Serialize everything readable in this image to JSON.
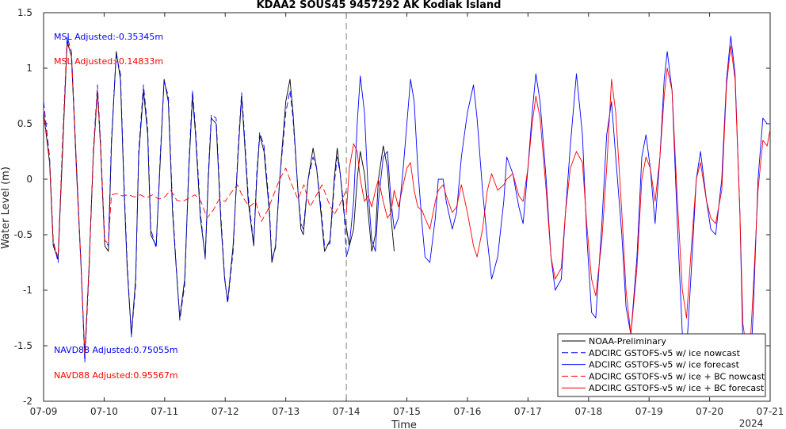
{
  "chart_data": {
    "type": "line",
    "title": "KDAA2 SOUS45 9457292 AK Kodiak Island",
    "xlabel": "Time",
    "ylabel": "Water Level (m)",
    "year_label": "2024",
    "xlim": [
      0,
      12
    ],
    "ylim": [
      -2,
      1.5
    ],
    "x_tick_values": [
      0,
      1,
      2,
      3,
      4,
      5,
      6,
      7,
      8,
      9,
      10,
      11,
      12
    ],
    "x_tick_labels": [
      "07-09",
      "07-10",
      "07-11",
      "07-12",
      "07-13",
      "07-14",
      "07-15",
      "07-16",
      "07-17",
      "07-18",
      "07-19",
      "07-20",
      "07-21"
    ],
    "y_tick_values": [
      -2,
      -1.5,
      -1,
      -0.5,
      0,
      0.5,
      1,
      1.5
    ],
    "y_tick_labels": [
      "-2",
      "-1.5",
      "-1",
      "-0.5",
      "0",
      "0.5",
      "1",
      "1.5"
    ],
    "forecast_start": 5,
    "annotations": [
      {
        "text": "MSL Adjusted:-0.35345m",
        "color": "#0000ff"
      },
      {
        "text": "MSL Adjusted:-0.14833m",
        "color": "#ff0000"
      },
      {
        "text": "NAVD88 Adjusted:0.75055m",
        "color": "#0000ff"
      },
      {
        "text": "NAVD88 Adjusted:0.95567m",
        "color": "#ff0000"
      }
    ],
    "legend_position": "bottom-right",
    "series": [
      {
        "name": "NOAA-Preliminary",
        "color": "#000000",
        "dash": "solid",
        "x": [
          0.0,
          0.1,
          0.16,
          0.24,
          0.31,
          0.39,
          0.46,
          0.55,
          0.62,
          0.68,
          0.75,
          0.82,
          0.89,
          0.94,
          1.01,
          1.07,
          1.12,
          1.2,
          1.27,
          1.33,
          1.38,
          1.45,
          1.52,
          1.57,
          1.65,
          1.72,
          1.77,
          1.86,
          1.93,
          1.99,
          2.06,
          2.13,
          2.19,
          2.25,
          2.33,
          2.4,
          2.46,
          2.51,
          2.59,
          2.67,
          2.72,
          2.77,
          2.85,
          2.93,
          2.99,
          3.04,
          3.13,
          3.21,
          3.27,
          3.3,
          3.38,
          3.47,
          3.52,
          3.57,
          3.64,
          3.73,
          3.77,
          3.83,
          3.9,
          4.0,
          4.07,
          4.12,
          4.2,
          4.25,
          4.29,
          4.37,
          4.45,
          4.51,
          4.58,
          4.64,
          4.73,
          4.8,
          4.85,
          4.9,
          4.96,
          5.05,
          5.12,
          5.18,
          5.23,
          5.3,
          5.36,
          5.42,
          5.48,
          5.53,
          5.61,
          5.68,
          5.74,
          5.79
        ],
        "y": [
          0.6,
          0.15,
          -0.6,
          -0.72,
          0.2,
          1.25,
          1.1,
          0.0,
          -0.8,
          -1.6,
          -0.8,
          0.2,
          0.8,
          0.3,
          -0.6,
          -0.65,
          0.3,
          1.15,
          0.9,
          -0.1,
          -0.8,
          -1.4,
          -0.9,
          0.2,
          0.8,
          0.4,
          -0.5,
          -0.6,
          0.2,
          0.9,
          0.7,
          -0.3,
          -0.8,
          -1.25,
          -0.9,
          0.1,
          0.75,
          0.4,
          -0.35,
          -0.7,
          0.0,
          0.55,
          0.5,
          -0.4,
          -0.9,
          -1.1,
          -0.6,
          0.2,
          0.75,
          0.5,
          -0.2,
          -0.6,
          0.0,
          0.4,
          0.25,
          -0.3,
          -0.75,
          -0.6,
          0.0,
          0.7,
          0.9,
          0.6,
          -0.1,
          -0.45,
          -0.5,
          0.0,
          0.28,
          0.1,
          -0.3,
          -0.65,
          -0.55,
          0.0,
          0.28,
          0.05,
          -0.3,
          -0.6,
          -0.45,
          0.0,
          0.25,
          0.05,
          -0.3,
          -0.65,
          -0.5,
          0.0,
          0.3,
          0.1,
          -0.35,
          -0.65
        ]
      },
      {
        "name": "ADCIRC GSTOFS-v5 w/ ice nowcast",
        "color": "#0000ff",
        "dash": "dashed",
        "x": [
          0.0,
          0.1,
          0.16,
          0.24,
          0.31,
          0.39,
          0.46,
          0.55,
          0.62,
          0.68,
          0.75,
          0.82,
          0.89,
          0.94,
          1.01,
          1.07,
          1.12,
          1.2,
          1.27,
          1.33,
          1.38,
          1.45,
          1.52,
          1.57,
          1.65,
          1.72,
          1.77,
          1.86,
          1.93,
          1.99,
          2.06,
          2.13,
          2.19,
          2.25,
          2.33,
          2.4,
          2.46,
          2.51,
          2.59,
          2.67,
          2.72,
          2.77,
          2.85,
          2.93,
          2.99,
          3.04,
          3.13,
          3.21,
          3.27,
          3.3,
          3.38,
          3.47,
          3.52,
          3.57,
          3.64,
          3.73,
          3.77,
          3.83,
          3.9,
          4.0,
          4.07,
          4.12,
          4.2,
          4.25,
          4.29,
          4.37,
          4.45,
          4.51,
          4.58,
          4.64,
          4.73,
          4.8,
          4.85,
          4.9,
          4.96,
          5.0
        ],
        "y": [
          0.7,
          0.2,
          -0.55,
          -0.75,
          0.3,
          1.28,
          1.15,
          0.05,
          -0.8,
          -1.65,
          -0.85,
          0.25,
          0.85,
          0.35,
          -0.55,
          -0.6,
          0.35,
          1.12,
          0.95,
          -0.05,
          -0.75,
          -1.42,
          -0.95,
          0.25,
          0.85,
          0.45,
          -0.45,
          -0.62,
          0.25,
          0.88,
          0.75,
          -0.25,
          -0.78,
          -1.27,
          -0.95,
          0.15,
          0.8,
          0.45,
          -0.3,
          -0.72,
          0.05,
          0.58,
          0.55,
          -0.35,
          -0.88,
          -1.12,
          -0.65,
          0.25,
          0.78,
          0.55,
          -0.15,
          -0.58,
          0.05,
          0.42,
          0.3,
          -0.25,
          -0.72,
          -0.62,
          0.0,
          0.6,
          0.8,
          0.55,
          -0.1,
          -0.4,
          -0.45,
          0.0,
          0.2,
          0.1,
          -0.25,
          -0.6,
          -0.58,
          -0.05,
          0.2,
          0.05,
          -0.25,
          -0.7
        ]
      },
      {
        "name": "ADCIRC GSTOFS-v5 w/ ice forecast",
        "color": "#0000ff",
        "dash": "solid",
        "x": [
          5.0,
          5.05,
          5.12,
          5.18,
          5.23,
          5.3,
          5.36,
          5.42,
          5.48,
          5.53,
          5.61,
          5.68,
          5.74,
          5.79,
          5.86,
          5.94,
          6.0,
          6.06,
          6.12,
          6.18,
          6.25,
          6.3,
          6.38,
          6.47,
          6.52,
          6.6,
          6.65,
          6.75,
          6.82,
          6.9,
          7.0,
          7.1,
          7.16,
          7.25,
          7.33,
          7.4,
          7.5,
          7.6,
          7.65,
          7.75,
          7.85,
          7.92,
          8.0,
          8.07,
          8.13,
          8.2,
          8.3,
          8.38,
          8.45,
          8.55,
          8.62,
          8.7,
          8.8,
          8.9,
          8.97,
          9.05,
          9.12,
          9.22,
          9.3,
          9.38,
          9.45,
          9.55,
          9.62,
          9.7,
          9.8,
          9.88,
          9.95,
          10.02,
          10.1,
          10.18,
          10.25,
          10.3,
          10.38,
          10.46,
          10.55,
          10.62,
          10.7,
          10.78,
          10.85,
          10.95,
          11.02,
          11.1,
          11.2,
          11.28,
          11.35,
          11.42,
          11.5,
          11.55,
          11.65,
          11.72,
          11.8,
          11.88,
          11.95,
          12.0
        ],
        "y": [
          -0.7,
          -0.6,
          -0.2,
          0.5,
          0.93,
          0.6,
          -0.1,
          -0.55,
          -0.65,
          -0.2,
          0.2,
          0.25,
          -0.2,
          -0.45,
          -0.35,
          0.1,
          0.5,
          0.9,
          0.7,
          0.1,
          -0.4,
          -0.7,
          -0.75,
          -0.35,
          0.0,
          0.0,
          -0.2,
          -0.45,
          -0.3,
          0.2,
          0.6,
          0.85,
          0.55,
          -0.1,
          -0.55,
          -0.9,
          -0.7,
          -0.2,
          0.2,
          0.05,
          -0.25,
          -0.4,
          0.1,
          0.6,
          0.95,
          0.7,
          0.0,
          -0.7,
          -1.0,
          -0.9,
          -0.3,
          0.3,
          0.95,
          0.4,
          -0.5,
          -1.2,
          -1.25,
          -0.4,
          0.4,
          0.7,
          0.2,
          -0.5,
          -1.15,
          -1.4,
          -0.7,
          0.2,
          0.4,
          0.1,
          -0.4,
          0.2,
          0.9,
          1.15,
          0.8,
          -0.3,
          -1.4,
          -1.55,
          -0.8,
          0.0,
          0.25,
          -0.2,
          -0.45,
          -0.5,
          0.0,
          0.9,
          1.29,
          0.95,
          -0.3,
          -1.5,
          -1.95,
          -1.2,
          0.0,
          0.55,
          0.5,
          0.5
        ]
      },
      {
        "name": "ADCIRC GSTOFS-v5 w/ ice + BC nowcast",
        "color": "#ff0000",
        "dash": "dashed",
        "x": [
          0.0,
          0.1,
          0.16,
          0.24,
          0.31,
          0.39,
          0.46,
          0.55,
          0.62,
          0.68,
          0.75,
          0.82,
          0.89,
          0.94,
          1.01,
          1.07,
          1.12,
          1.2,
          1.3,
          1.4,
          1.5,
          1.6,
          1.7,
          1.8,
          1.9,
          2.0,
          2.1,
          2.2,
          2.3,
          2.4,
          2.5,
          2.6,
          2.7,
          2.8,
          2.9,
          3.0,
          3.1,
          3.2,
          3.3,
          3.4,
          3.5,
          3.6,
          3.7,
          3.8,
          3.9,
          4.0,
          4.1,
          4.2,
          4.3,
          4.4,
          4.5,
          4.6,
          4.7,
          4.8,
          4.9,
          5.0
        ],
        "y": [
          0.62,
          0.18,
          -0.58,
          -0.7,
          0.28,
          1.22,
          1.12,
          0.05,
          -0.78,
          -1.58,
          -0.82,
          0.22,
          0.8,
          0.32,
          -0.55,
          -0.58,
          -0.14,
          -0.13,
          -0.15,
          -0.14,
          -0.16,
          -0.14,
          -0.17,
          -0.14,
          -0.18,
          -0.16,
          -0.1,
          -0.19,
          -0.2,
          -0.17,
          -0.14,
          -0.2,
          -0.35,
          -0.28,
          -0.18,
          -0.2,
          -0.12,
          -0.05,
          -0.17,
          -0.25,
          -0.2,
          -0.38,
          -0.28,
          -0.14,
          0.0,
          0.1,
          -0.05,
          -0.18,
          -0.05,
          -0.25,
          -0.15,
          -0.05,
          -0.2,
          -0.32,
          -0.22,
          -0.1
        ]
      },
      {
        "name": "ADCIRC GSTOFS-v5 w/ ice + BC forecast",
        "color": "#ff0000",
        "dash": "solid",
        "x": [
          5.0,
          5.05,
          5.12,
          5.18,
          5.23,
          5.3,
          5.36,
          5.42,
          5.48,
          5.53,
          5.61,
          5.68,
          5.74,
          5.79,
          5.86,
          5.94,
          6.0,
          6.06,
          6.12,
          6.18,
          6.25,
          6.3,
          6.38,
          6.47,
          6.52,
          6.6,
          6.65,
          6.75,
          6.82,
          6.9,
          7.0,
          7.1,
          7.16,
          7.25,
          7.33,
          7.4,
          7.5,
          7.6,
          7.65,
          7.75,
          7.85,
          7.92,
          8.0,
          8.07,
          8.13,
          8.2,
          8.3,
          8.38,
          8.45,
          8.55,
          8.62,
          8.7,
          8.8,
          8.9,
          8.97,
          9.05,
          9.12,
          9.22,
          9.3,
          9.38,
          9.45,
          9.55,
          9.62,
          9.7,
          9.8,
          9.88,
          9.95,
          10.02,
          10.1,
          10.18,
          10.25,
          10.3,
          10.38,
          10.46,
          10.55,
          10.62,
          10.7,
          10.78,
          10.85,
          10.95,
          11.02,
          11.1,
          11.2,
          11.28,
          11.35,
          11.42,
          11.5,
          11.55,
          11.65,
          11.72,
          11.8,
          11.88,
          11.95,
          12.0
        ],
        "y": [
          -0.3,
          0.1,
          0.32,
          0.25,
          0.0,
          -0.2,
          -0.15,
          -0.25,
          -0.1,
          0.0,
          -0.2,
          -0.35,
          -0.3,
          -0.1,
          -0.25,
          -0.05,
          0.1,
          0.15,
          -0.1,
          -0.25,
          -0.28,
          -0.35,
          -0.45,
          -0.2,
          -0.1,
          -0.05,
          -0.15,
          -0.3,
          -0.25,
          -0.05,
          -0.3,
          -0.6,
          -0.7,
          -0.45,
          -0.1,
          0.05,
          -0.1,
          -0.05,
          0.0,
          0.05,
          -0.15,
          -0.2,
          0.1,
          0.5,
          0.75,
          0.55,
          -0.1,
          -0.7,
          -0.9,
          -0.8,
          -0.3,
          0.1,
          0.25,
          0.15,
          -0.4,
          -0.9,
          -1.05,
          -0.55,
          0.1,
          0.9,
          0.6,
          -0.3,
          -1.0,
          -1.4,
          -0.8,
          0.0,
          0.2,
          0.1,
          -0.2,
          0.2,
          0.75,
          1.0,
          0.8,
          -0.1,
          -1.0,
          -1.25,
          -0.6,
          0.0,
          0.15,
          -0.2,
          -0.35,
          -0.4,
          -0.1,
          0.85,
          1.2,
          0.9,
          -0.3,
          -1.3,
          -1.7,
          -1.0,
          -0.1,
          0.35,
          0.3,
          0.45
        ]
      }
    ]
  }
}
